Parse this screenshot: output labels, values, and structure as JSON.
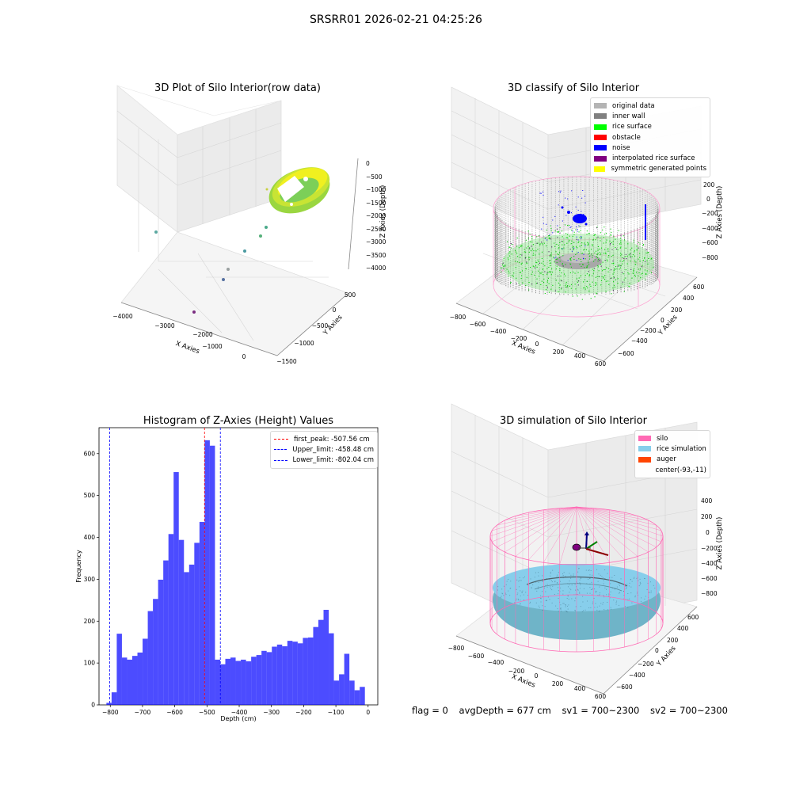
{
  "suptitle": "SRSRR01 2026-02-21 04:25:26",
  "panels": {
    "raw": {
      "title": "3D Plot of Silo Interior(row data)",
      "xlabel": "X Axies",
      "ylabel": "Y Axies",
      "zlabel": "Z Axies (Depth)",
      "xticks": [
        "−4000",
        "−3000",
        "−2000",
        "−1000",
        "0"
      ],
      "yticks": [
        "500",
        "0",
        "−500",
        "−1000",
        "−1500"
      ],
      "zticks": [
        "0",
        "−500",
        "−1000",
        "−1500",
        "−2000",
        "−2500",
        "−3000",
        "−3500",
        "−4000"
      ]
    },
    "classify": {
      "title": "3D classify of Silo Interior",
      "xlabel": "X Axies",
      "ylabel": "Y Axies",
      "zlabel": "Z Axies (Depth)",
      "xticks": [
        "−800",
        "−600",
        "−400",
        "−200",
        "0",
        "200",
        "400",
        "600"
      ],
      "yticks": [
        "600",
        "400",
        "200",
        "0",
        "−200",
        "−400",
        "−600"
      ],
      "zticks": [
        "200",
        "0",
        "−200",
        "−400",
        "−600",
        "−800"
      ],
      "legend": [
        {
          "label": "original data",
          "color": "#b4b4b4"
        },
        {
          "label": "inner wall",
          "color": "#808080"
        },
        {
          "label": "rice surface",
          "color": "#00ff00"
        },
        {
          "label": "obstacle",
          "color": "#ff0000"
        },
        {
          "label": "noise",
          "color": "#0000ff"
        },
        {
          "label": "interpolated rice surface",
          "color": "#800080"
        },
        {
          "label": "symmetric generated points",
          "color": "#ffff00"
        }
      ]
    },
    "simulation": {
      "title": "3D simulation of Silo Interior",
      "xlabel": "X Axies",
      "ylabel": "Y Axies",
      "zlabel": "Z Axies (Depth)",
      "xticks": [
        "−800",
        "−600",
        "−400",
        "−200",
        "0",
        "200",
        "400",
        "600"
      ],
      "yticks": [
        "600",
        "400",
        "200",
        "0",
        "−200",
        "−400",
        "−600"
      ],
      "zticks": [
        "400",
        "200",
        "0",
        "−200",
        "−400",
        "−600",
        "−800"
      ],
      "legend": [
        {
          "label": "silo",
          "color": "#ff69b4"
        },
        {
          "label": "rice simulation",
          "color": "#87ceeb"
        },
        {
          "label": "auger",
          "color": "#ff4500"
        },
        {
          "label": "center(-93,-11)",
          "color": ""
        }
      ]
    }
  },
  "chart_data": {
    "type": "bar",
    "title": "Histogram of Z-Axies (Height) Values",
    "xlabel": "Depth (cm)",
    "ylabel": "Frequency",
    "xlim": [
      -835,
      30
    ],
    "ylim": [
      0,
      662
    ],
    "xticks": [
      -800,
      -700,
      -600,
      -500,
      -400,
      -300,
      -200,
      -100,
      0
    ],
    "yticks": [
      0,
      100,
      200,
      300,
      400,
      500,
      600
    ],
    "bin_width": 16.04,
    "bin_start": -812,
    "color": "#0000ff",
    "values": [
      5,
      30,
      170,
      113,
      108,
      117,
      125,
      158,
      224,
      253,
      299,
      345,
      408,
      556,
      394,
      317,
      335,
      387,
      437,
      632,
      619,
      108,
      97,
      110,
      113,
      105,
      108,
      104,
      115,
      119,
      129,
      126,
      139,
      144,
      140,
      153,
      151,
      147,
      160,
      161,
      186,
      203,
      227,
      171,
      58,
      73,
      122,
      58,
      35,
      43
    ],
    "vlines": [
      {
        "label": "first_peak: -507.56 cm",
        "x": -507.56,
        "color": "#ff0000"
      },
      {
        "label": "Upper_limit: -458.48 cm",
        "x": -458.48,
        "color": "#0000ff"
      },
      {
        "label": "Lower_limit: -802.04 cm",
        "x": -802.04,
        "color": "#0000ff"
      }
    ],
    "legend_position": "top-right"
  },
  "status": {
    "flag": "flag = 0",
    "avg_depth": "avgDepth = 677 cm",
    "sv1": "sv1 = 700~2300",
    "sv2": "sv2 = 700~2300"
  }
}
